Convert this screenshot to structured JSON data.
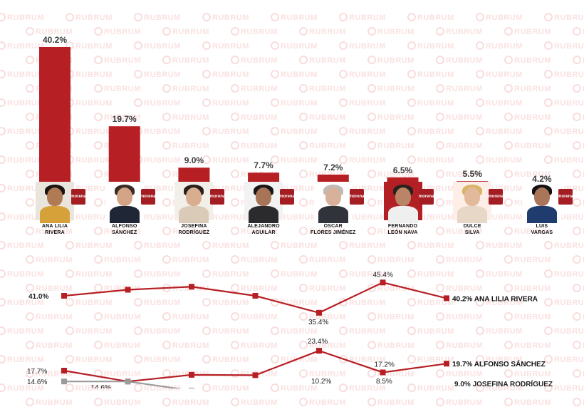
{
  "watermark_text": "RUBRUM",
  "party_label": "morena",
  "candidates": [
    {
      "line1": "ANA LILIA",
      "line2": "RIVERA",
      "photo": {
        "bg": "#e9e4dc",
        "skin": "#b07a55",
        "hair": "#1b1414",
        "shirt": "#d7a13a"
      }
    },
    {
      "line1": "ALFONSO",
      "line2": "SÁNCHEZ",
      "photo": {
        "bg": "#ffffff",
        "skin": "#d4a487",
        "hair": "#3a2c24",
        "shirt": "#1f2635"
      }
    },
    {
      "line1": "JOSEFINA",
      "line2": "RODRÍGUEZ",
      "photo": {
        "bg": "#f2efe8",
        "skin": "#d8ad90",
        "hair": "#2a1f1a",
        "shirt": "#d9cbb8"
      }
    },
    {
      "line1": "ALEJANDRO",
      "line2": "AGUILAR",
      "photo": {
        "bg": "#f2f2f2",
        "skin": "#a87457",
        "hair": "#1a1616",
        "shirt": "#2b2b2e"
      }
    },
    {
      "line1": "ÓSCAR",
      "line2": "FLORES JIMÉNEZ",
      "photo": {
        "bg": "#ffffff",
        "skin": "#d7b19a",
        "hair": "#bfbab4",
        "shirt": "#30333a"
      }
    },
    {
      "line1": "FERNANDO",
      "line2": "LEÓN NAVA",
      "photo": {
        "bg": "#b21f25",
        "skin": "#b98566",
        "hair": "#2a211c",
        "shirt": "#efefef"
      }
    },
    {
      "line1": "DULCE",
      "line2": "SILVA",
      "photo": {
        "bg": "#fdeee8",
        "skin": "#e3b99c",
        "hair": "#d9b56a",
        "shirt": "#e7d7c6"
      }
    },
    {
      "line1": "LUIS",
      "line2": "VARGAS",
      "photo": {
        "bg": "#ffffff",
        "skin": "#a9765a",
        "hair": "#121212",
        "shirt": "#203b6d"
      }
    }
  ],
  "chart_data": [
    {
      "type": "bar",
      "categories": [
        "ANA LILIA RIVERA",
        "ALFONSO SÁNCHEZ",
        "JOSEFINA RODRÍGUEZ",
        "ALEJANDRO AGUILAR",
        "ÓSCAR FLORES JIMÉNEZ",
        "FERNANDO LEÓN NAVA",
        "DULCE SILVA",
        "LUIS VARGAS"
      ],
      "values": [
        40.2,
        19.7,
        9.0,
        7.7,
        7.2,
        6.5,
        5.5,
        4.2
      ],
      "labels": [
        "40.2%",
        "19.7%",
        "9.0%",
        "7.7%",
        "7.2%",
        "6.5%",
        "5.5%",
        "4.2%"
      ],
      "ylim": [
        0,
        40.2
      ],
      "grid": false,
      "colors": {
        "bar": "#b61f24",
        "label": "#3a3a3a"
      }
    },
    {
      "type": "line",
      "grid": false,
      "series": [
        {
          "name": "ANA LILIA RIVERA",
          "color": "#b61f24",
          "values": [
            41.0,
            43.0,
            44.0,
            41.0,
            35.4,
            45.4,
            40.2
          ],
          "point_labels": [
            "41.0%",
            "",
            "",
            "",
            "35.4%",
            "45.4%",
            "40.2%"
          ],
          "end_label": "40.2% ANA LILIA RIVERA"
        },
        {
          "name": "ALFONSO SÁNCHEZ",
          "color": "#b61f24",
          "values": [
            17.7,
            14.6,
            16.5,
            16.4,
            23.4,
            17.2,
            19.7
          ],
          "point_labels": [
            "17.7%",
            "",
            "",
            "",
            "23.4%",
            "17.2%",
            "19.7%"
          ],
          "end_label": "19.7% ALFONSO SÁNCHEZ"
        },
        {
          "name": "JOSEFINA RODRÍGUEZ",
          "color": "#9a9a9a",
          "values": [
            14.6,
            14.6,
            12.0
          ],
          "point_labels": [
            "14.6%",
            "14.6%",
            ""
          ],
          "end_label": ""
        }
      ],
      "extra_labels": [
        "10.2%",
        "8.5%",
        "9.0% JOSEFINA RODRÍGUEZ"
      ]
    }
  ]
}
